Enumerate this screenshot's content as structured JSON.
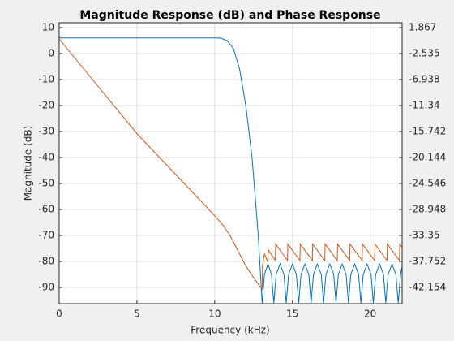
{
  "chart_data": {
    "type": "line",
    "title": "Magnitude Response (dB) and Phase Response",
    "x_label": "Frequency (kHz)",
    "y_label": "Magnitude (dB)",
    "xlim": [
      0,
      22.05
    ],
    "xticks": [
      0,
      5,
      10,
      15,
      20
    ],
    "ylim": [
      -96.25,
      11.875
    ],
    "yticks": [
      10,
      0,
      -10,
      -20,
      -30,
      -40,
      -50,
      -60,
      -70,
      -80,
      -90
    ],
    "y2lim": [
      -44.905,
      2.692
    ],
    "y2ticks": [
      1.867,
      -2.535,
      -6.938,
      -11.34,
      -15.742,
      -20.144,
      -24.546,
      -28.948,
      -33.35,
      -37.752,
      -42.154
    ],
    "grid": true,
    "series": [
      {
        "color": "#0072bd",
        "x": [
          0,
          2,
          4,
          6,
          8,
          10,
          10.4,
          10.8,
          11.2,
          11.6,
          12,
          12.4,
          12.8,
          13.05,
          13.2,
          13.425,
          13.65,
          13.8,
          13.95,
          14.2,
          14.45,
          14.6,
          14.75,
          15,
          15.25,
          15.4,
          15.55,
          15.8,
          16.05,
          16.2,
          16.35,
          16.6,
          16.85,
          17,
          17.15,
          17.4,
          17.65,
          17.8,
          17.95,
          18.2,
          18.45,
          18.6,
          18.75,
          19,
          19.25,
          19.4,
          19.55,
          19.8,
          20.05,
          20.2,
          20.35,
          20.6,
          20.85,
          21,
          21.15,
          21.4,
          21.65,
          21.8,
          21.95,
          22.05
        ],
        "values": [
          6,
          6,
          6,
          6,
          6,
          6,
          5.9,
          5,
          2,
          -6,
          -20,
          -40,
          -70,
          -96,
          -85,
          -81,
          -85,
          -96,
          -85,
          -81,
          -85,
          -96,
          -85,
          -81,
          -85,
          -96,
          -85,
          -81,
          -85,
          -96,
          -85,
          -81,
          -85,
          -96,
          -85,
          -81,
          -85,
          -96,
          -85,
          -81,
          -85,
          -96,
          -85,
          -81,
          -85,
          -96,
          -85,
          -81,
          -85,
          -96,
          -85,
          -81,
          -85,
          -96,
          -85,
          -81,
          -85,
          -96,
          -85,
          -82
        ]
      },
      {
        "color": "#d95319",
        "axis": "y2",
        "x": [
          0,
          5,
          10,
          10.5,
          11,
          11.5,
          12,
          12.5,
          13.05,
          13.07,
          13.2,
          13.4,
          13.45,
          13.9,
          13.92,
          14.68,
          14.7,
          15.48,
          15.5,
          16.28,
          16.3,
          17.08,
          17.1,
          17.88,
          17.9,
          18.68,
          18.7,
          19.48,
          19.5,
          20.28,
          20.3,
          21.08,
          21.1,
          21.88,
          21.9,
          22.05
        ],
        "values": [
          -0.06,
          -16.1,
          -30,
          -31.5,
          -33.4,
          -36,
          -38.5,
          -40.5,
          -42.5,
          -38.5,
          -36.5,
          -37.8,
          -35.8,
          -37.6,
          -34.8,
          -37.6,
          -34.8,
          -37.6,
          -34.8,
          -37.6,
          -34.8,
          -37.6,
          -34.8,
          -37.6,
          -34.8,
          -37.6,
          -34.8,
          -37.6,
          -34.8,
          -37.6,
          -34.8,
          -37.6,
          -34.8,
          -37.6,
          -34.8,
          -35.4
        ]
      }
    ]
  }
}
